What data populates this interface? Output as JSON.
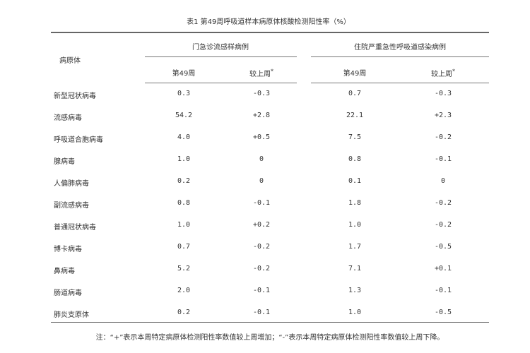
{
  "table": {
    "title": "表1  第49周呼吸道样本病原体核酸检测阳性率（%）",
    "row_header": "病原体",
    "groups": [
      {
        "label": "门急诊流感样病例",
        "cols": [
          "第49周",
          "较上周"
        ]
      },
      {
        "label": "住院严重急性呼吸道感染病例",
        "cols": [
          "第49周",
          "较上周"
        ]
      }
    ],
    "asterisk": "*",
    "rows": [
      {
        "name": "新型冠状病毒",
        "values": [
          "0.3",
          "-0.3",
          "0.7",
          "-0.3"
        ]
      },
      {
        "name": "流感病毒",
        "values": [
          "54.2",
          "+2.8",
          "22.1",
          "+2.3"
        ]
      },
      {
        "name": "呼吸道合胞病毒",
        "values": [
          "4.0",
          "+0.5",
          "7.5",
          "-0.2"
        ]
      },
      {
        "name": "腺病毒",
        "values": [
          "1.0",
          "0",
          "0.8",
          "-0.1"
        ]
      },
      {
        "name": "人偏肺病毒",
        "values": [
          "0.2",
          "0",
          "0.1",
          "0"
        ]
      },
      {
        "name": "副流感病毒",
        "values": [
          "0.8",
          "-0.1",
          "1.8",
          "-0.2"
        ]
      },
      {
        "name": "普通冠状病毒",
        "values": [
          "1.0",
          "+0.2",
          "1.0",
          "-0.2"
        ]
      },
      {
        "name": "博卡病毒",
        "values": [
          "0.7",
          "-0.2",
          "1.7",
          "-0.5"
        ]
      },
      {
        "name": "鼻病毒",
        "values": [
          "5.2",
          "-0.2",
          "7.1",
          "+0.1"
        ]
      },
      {
        "name": "肠道病毒",
        "values": [
          "2.0",
          "-0.1",
          "1.3",
          "-0.1"
        ]
      },
      {
        "name": "肺炎支原体",
        "values": [
          "0.2",
          "-0.1",
          "1.0",
          "-0.5"
        ]
      }
    ],
    "note": "注：“+”表示本周特定病原体检测阳性率数值较上周增加；“-”表示本周特定病原体检测阳性率数值较上周下降。"
  }
}
